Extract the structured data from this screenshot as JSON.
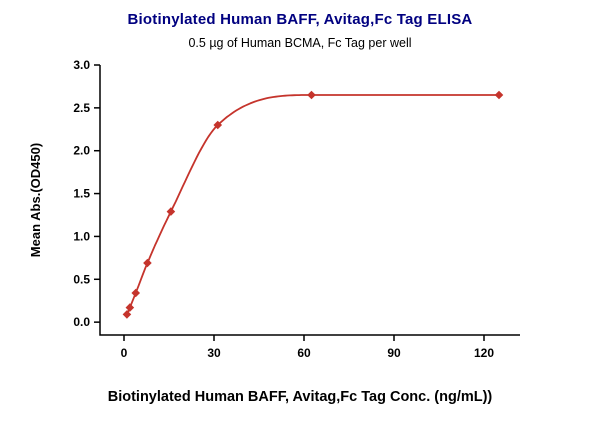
{
  "chart_data": {
    "type": "scatter",
    "title": "Biotinylated Human BAFF, Avitag,Fc Tag ELISA",
    "subtitle": "0.5 µg of Human BCMA, Fc Tag per well",
    "xlabel": "Biotinylated Human BAFF, Avitag,Fc Tag Conc. (ng/mL))",
    "ylabel": "Mean Abs.(OD450)",
    "x": [
      0.98,
      1.95,
      3.91,
      7.81,
      15.63,
      31.25,
      62.5,
      125
    ],
    "y": [
      0.09,
      0.17,
      0.34,
      0.69,
      1.29,
      2.3,
      2.65,
      2.65
    ],
    "curve_style": "smooth 4PL-like fit through points",
    "xticks": [
      0,
      30,
      60,
      90,
      120
    ],
    "yticks": [
      0,
      0.5,
      1,
      1.5,
      2,
      2.5,
      3
    ],
    "xlim": [
      -8,
      132
    ],
    "ylim": [
      -0.15,
      3.0
    ],
    "grid": false,
    "legend": "none",
    "colors": {
      "title": "#000080",
      "series": "#c5342c",
      "axis": "#000000"
    }
  }
}
